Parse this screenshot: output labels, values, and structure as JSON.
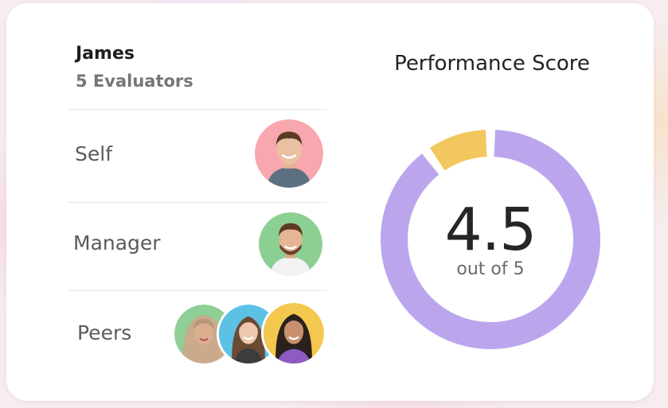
{
  "evaluation": {
    "name": "James",
    "evaluators": "5 Evaluators"
  },
  "rows": [
    {
      "label": "Self",
      "avatar_bg": [
        "#f7a7ad"
      ],
      "avatar_icon": [
        "person-photo-icon"
      ]
    },
    {
      "label": "Manager",
      "avatar_bg": [
        "#8ccf93"
      ],
      "avatar_icon": [
        "person-photo-icon"
      ]
    },
    {
      "label": "Peers",
      "avatar_bg": [
        "#8fce95",
        "#5dc1e6",
        "#f4c84e"
      ],
      "avatar_icon": [
        "person-photo-icon",
        "person-photo-icon",
        "person-photo-icon"
      ]
    }
  ],
  "performance": {
    "title": "Performance Score",
    "score": "4.5",
    "out_of": "out of 5",
    "score_value": 4.5,
    "max_value": 5
  },
  "colors": {
    "donut_main": "#bba6ee",
    "donut_remainder": "#f2c75d",
    "card_bg": "#ffffff"
  }
}
